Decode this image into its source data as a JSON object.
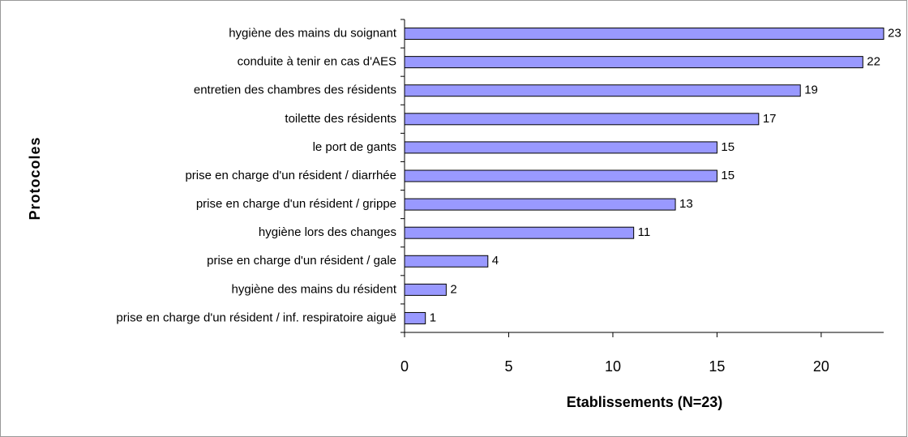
{
  "chart_data": {
    "type": "barh",
    "categories": [
      "hygiène des mains du soignant",
      "conduite à tenir en cas d'AES",
      "entretien des chambres des résidents",
      "toilette des résidents",
      "le port de gants",
      "prise en charge d'un résident / diarrhée",
      "prise en charge d'un résident / grippe",
      "hygiène lors des changes",
      "prise en charge d'un résident / gale",
      "hygiène des mains du résident",
      "prise en charge d'un résident / inf. respiratoire aiguë"
    ],
    "values": [
      23,
      22,
      19,
      17,
      15,
      15,
      13,
      11,
      4,
      2,
      1
    ],
    "color": "#9999ff",
    "xlim": [
      0,
      23
    ],
    "xticks": [
      0,
      5,
      10,
      15,
      20
    ],
    "xlabel": "Etablissements (N=23)",
    "ylabel": "Protocoles"
  }
}
